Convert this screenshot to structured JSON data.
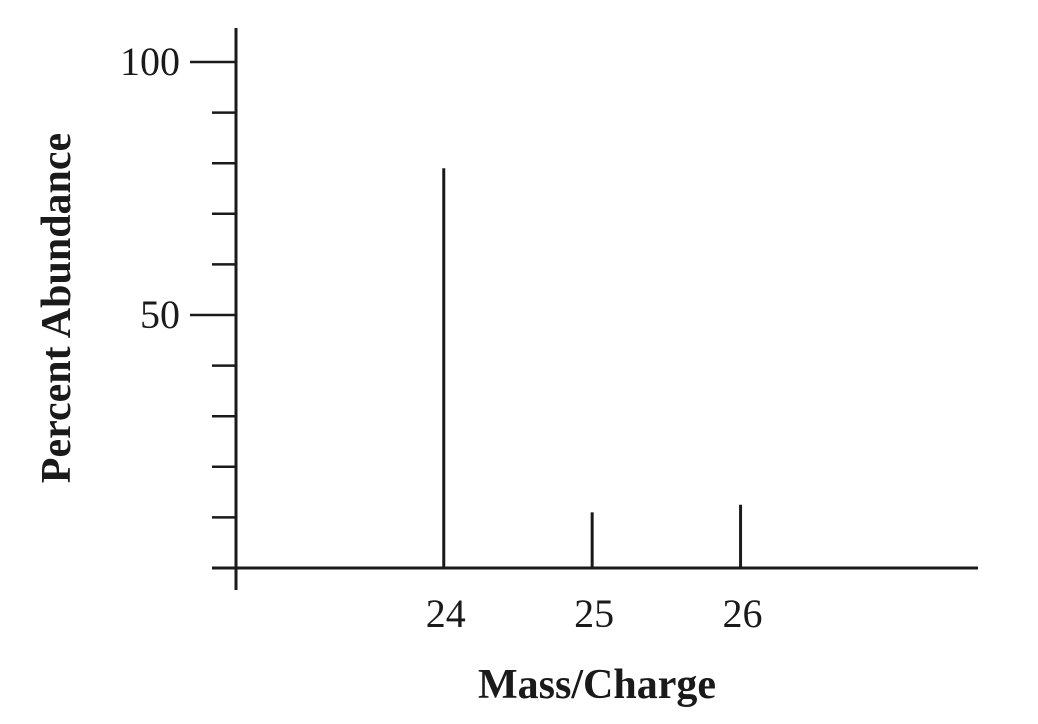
{
  "chart_data": {
    "type": "bar",
    "title": "",
    "xlabel": "Mass/Charge",
    "ylabel": "Percent Abundance",
    "x_ticks": [
      "24",
      "25",
      "26"
    ],
    "y_tick_labels": [
      "50",
      "100"
    ],
    "y_minor_ticks": [
      10,
      20,
      30,
      40,
      50,
      60,
      70,
      80,
      90,
      100
    ],
    "xlim": [
      22.6,
      27.6
    ],
    "ylim": [
      0,
      100
    ],
    "categories": [
      "24",
      "25",
      "26"
    ],
    "series": [
      {
        "values": [
          79,
          11,
          12.5
        ]
      }
    ],
    "grid": false,
    "legend": "none",
    "colors": {
      "ink": "#1a1a1a",
      "background": "#ffffff"
    }
  }
}
